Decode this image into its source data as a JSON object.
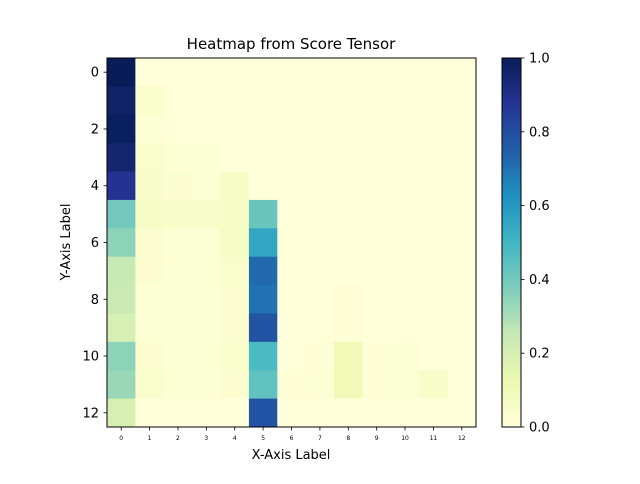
{
  "chart_data": {
    "type": "heatmap",
    "title": "Heatmap from Score Tensor",
    "xlabel": "X-Axis Label",
    "ylabel": "Y-Axis Label",
    "x_categories": [
      "0",
      "1",
      "2",
      "3",
      "4",
      "5",
      "6",
      "7",
      "8",
      "9",
      "10",
      "11",
      "12"
    ],
    "y_categories": [
      "0",
      "1",
      "2",
      "3",
      "4",
      "5",
      "6",
      "7",
      "8",
      "9",
      "10",
      "11",
      "12"
    ],
    "y_tick_labels": [
      "0",
      "2",
      "4",
      "6",
      "8",
      "10",
      "12"
    ],
    "colorbar": {
      "min": 0.0,
      "max": 1.0,
      "tick_labels": [
        "0.0",
        "0.2",
        "0.4",
        "0.6",
        "0.8",
        "1.0"
      ],
      "colormap": "YlGnBu"
    },
    "values": [
      [
        1.0,
        0.0,
        0.0,
        0.0,
        0.0,
        0.0,
        0.0,
        0.0,
        0.0,
        0.0,
        0.0,
        0.0,
        0.0
      ],
      [
        0.97,
        0.04,
        0.0,
        0.0,
        0.0,
        0.0,
        0.0,
        0.0,
        0.0,
        0.0,
        0.0,
        0.0,
        0.0
      ],
      [
        0.99,
        0.02,
        0.0,
        0.0,
        0.0,
        0.0,
        0.0,
        0.0,
        0.0,
        0.0,
        0.0,
        0.0,
        0.0
      ],
      [
        0.95,
        0.04,
        0.02,
        0.02,
        0.0,
        0.0,
        0.0,
        0.0,
        0.0,
        0.0,
        0.0,
        0.0,
        0.0
      ],
      [
        0.88,
        0.05,
        0.03,
        0.02,
        0.06,
        0.0,
        0.0,
        0.0,
        0.0,
        0.0,
        0.0,
        0.0,
        0.0
      ],
      [
        0.4,
        0.06,
        0.05,
        0.05,
        0.06,
        0.42,
        0.0,
        0.0,
        0.0,
        0.0,
        0.0,
        0.0,
        0.0
      ],
      [
        0.35,
        0.03,
        0.02,
        0.02,
        0.07,
        0.55,
        0.0,
        0.0,
        0.0,
        0.0,
        0.0,
        0.0,
        0.0
      ],
      [
        0.25,
        0.03,
        0.02,
        0.02,
        0.04,
        0.72,
        0.0,
        0.0,
        0.0,
        0.0,
        0.0,
        0.0,
        0.0
      ],
      [
        0.24,
        0.02,
        0.02,
        0.02,
        0.03,
        0.7,
        0.0,
        0.0,
        0.01,
        0.0,
        0.0,
        0.0,
        0.0
      ],
      [
        0.2,
        0.02,
        0.02,
        0.02,
        0.03,
        0.78,
        0.0,
        0.0,
        0.01,
        0.0,
        0.0,
        0.0,
        0.0
      ],
      [
        0.35,
        0.03,
        0.02,
        0.02,
        0.04,
        0.48,
        0.0,
        0.01,
        0.1,
        0.01,
        0.02,
        0.0,
        0.0
      ],
      [
        0.33,
        0.04,
        0.02,
        0.02,
        0.03,
        0.44,
        0.01,
        0.02,
        0.1,
        0.01,
        0.02,
        0.05,
        0.0
      ],
      [
        0.2,
        0.0,
        0.0,
        0.0,
        0.0,
        0.78,
        0.0,
        0.0,
        0.0,
        0.0,
        0.0,
        0.0,
        0.0
      ]
    ]
  }
}
